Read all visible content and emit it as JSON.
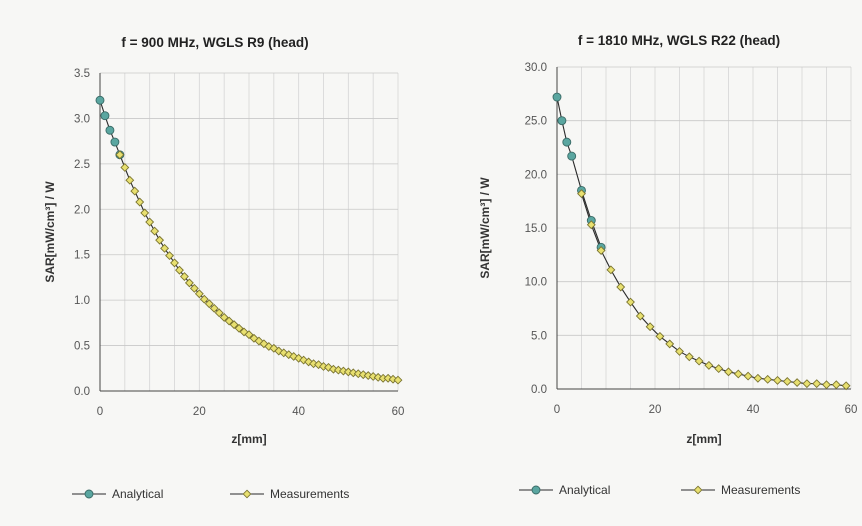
{
  "chart_data": [
    {
      "type": "line",
      "title": "f = 900 MHz, WGLS R9 (head)",
      "xlabel": "z[mm]",
      "ylabel": "SAR[mW/cm³] / W",
      "xlim": [
        0,
        60
      ],
      "ylim": [
        0,
        3.5
      ],
      "xticks": [
        "0",
        "20",
        "40",
        "60"
      ],
      "yticks": [
        "0.0",
        "0.5",
        "1.0",
        "1.5",
        "2.0",
        "2.5",
        "3.0",
        "3.5"
      ],
      "grid": true,
      "legend_position": "bottom",
      "series": [
        {
          "name": "Analytical",
          "color": "#5aa6a0",
          "marker": "circle",
          "x": [
            0,
            1,
            2,
            3,
            4
          ],
          "y": [
            3.2,
            3.03,
            2.87,
            2.74,
            2.6
          ]
        },
        {
          "name": "Measurements",
          "color": "#e8e070",
          "marker": "diamond",
          "x": [
            4,
            5,
            6,
            7,
            8,
            9,
            10,
            11,
            12,
            13,
            14,
            15,
            16,
            17,
            18,
            19,
            20,
            21,
            22,
            23,
            24,
            25,
            26,
            27,
            28,
            29,
            30,
            31,
            32,
            33,
            34,
            35,
            36,
            37,
            38,
            39,
            40,
            41,
            42,
            43,
            44,
            45,
            46,
            47,
            48,
            49,
            50,
            51,
            52,
            53,
            54,
            55,
            56,
            57,
            58,
            59,
            60
          ],
          "y": [
            2.6,
            2.46,
            2.32,
            2.2,
            2.08,
            1.96,
            1.86,
            1.76,
            1.66,
            1.57,
            1.49,
            1.41,
            1.33,
            1.26,
            1.19,
            1.13,
            1.07,
            1.01,
            0.96,
            0.91,
            0.86,
            0.81,
            0.77,
            0.73,
            0.69,
            0.65,
            0.62,
            0.58,
            0.55,
            0.52,
            0.49,
            0.47,
            0.44,
            0.42,
            0.4,
            0.38,
            0.36,
            0.34,
            0.32,
            0.3,
            0.29,
            0.27,
            0.26,
            0.24,
            0.23,
            0.22,
            0.21,
            0.2,
            0.19,
            0.18,
            0.17,
            0.16,
            0.15,
            0.14,
            0.14,
            0.13,
            0.12
          ]
        }
      ]
    },
    {
      "type": "line",
      "title": "f = 1810 MHz, WGLS R22 (head)",
      "xlabel": "z[mm]",
      "ylabel": "SAR[mW/cm³] / W",
      "xlim": [
        0,
        60
      ],
      "ylim": [
        0,
        30
      ],
      "xticks": [
        "0",
        "20",
        "40",
        "60"
      ],
      "yticks": [
        "0.0",
        "5.0",
        "10.0",
        "15.0",
        "20.0",
        "25.0",
        "30.0"
      ],
      "grid": true,
      "legend_position": "bottom",
      "series": [
        {
          "name": "Analytical",
          "color": "#5aa6a0",
          "marker": "circle",
          "x": [
            0,
            1,
            2,
            3,
            5,
            7,
            9
          ],
          "y": [
            27.2,
            25.0,
            23.0,
            21.7,
            18.5,
            15.7,
            13.2
          ]
        },
        {
          "name": "Measurements",
          "color": "#e8e070",
          "marker": "diamond",
          "x": [
            5,
            7,
            9,
            11,
            13,
            15,
            17,
            19,
            21,
            23,
            25,
            27,
            29,
            31,
            33,
            35,
            37,
            39,
            41,
            43,
            45,
            47,
            49,
            51,
            53,
            55,
            57,
            59
          ],
          "y": [
            18.2,
            15.3,
            12.9,
            11.1,
            9.5,
            8.1,
            6.8,
            5.8,
            4.9,
            4.2,
            3.5,
            3.0,
            2.6,
            2.2,
            1.9,
            1.6,
            1.4,
            1.2,
            1.0,
            0.9,
            0.8,
            0.7,
            0.6,
            0.5,
            0.5,
            0.4,
            0.4,
            0.3
          ]
        }
      ]
    }
  ]
}
